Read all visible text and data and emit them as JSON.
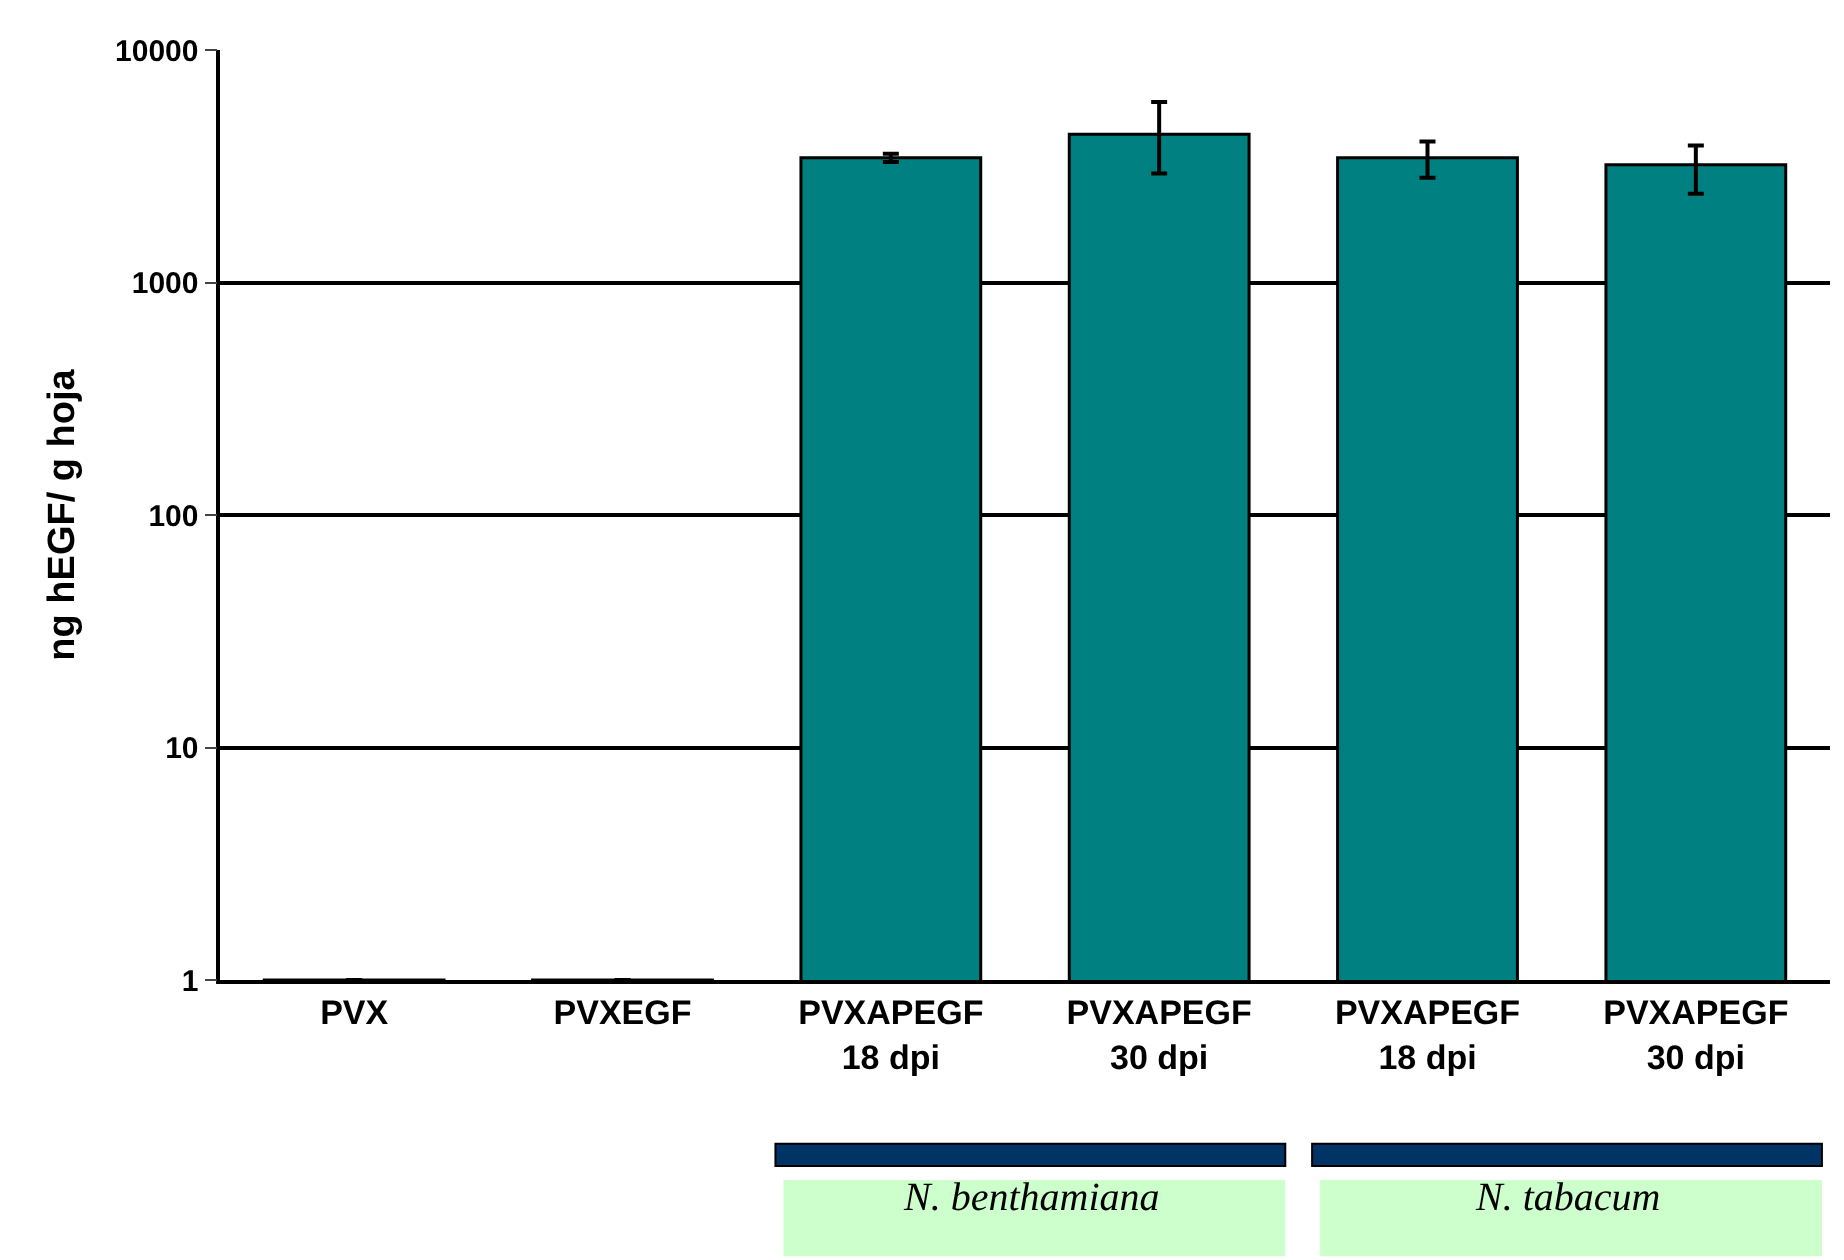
{
  "chart_data": {
    "type": "bar",
    "ylabel": "ng hEGF/ g hoja",
    "categories": [
      "PVX",
      "PVXEGF",
      "PVXAPEGF\n18 dpi",
      "PVXAPEGF\n30 dpi",
      "PVXAPEGF\n18 dpi",
      "PVXAPEGF\n30 dpi"
    ],
    "values": [
      1,
      1,
      3440,
      4340,
      3440,
      3210
    ],
    "errors": [
      null,
      null,
      [
        3300,
        3580
      ],
      [
        2940,
        5970
      ],
      [
        2820,
        4040
      ],
      [
        2410,
        3880
      ]
    ],
    "color": "#008080",
    "log": "y",
    "ylim": [
      1,
      10000
    ],
    "yticks": [
      1,
      10,
      100,
      1000,
      10000
    ],
    "grid": "y",
    "annotations": [
      "N. benthamiana",
      "N. tabacum"
    ]
  }
}
